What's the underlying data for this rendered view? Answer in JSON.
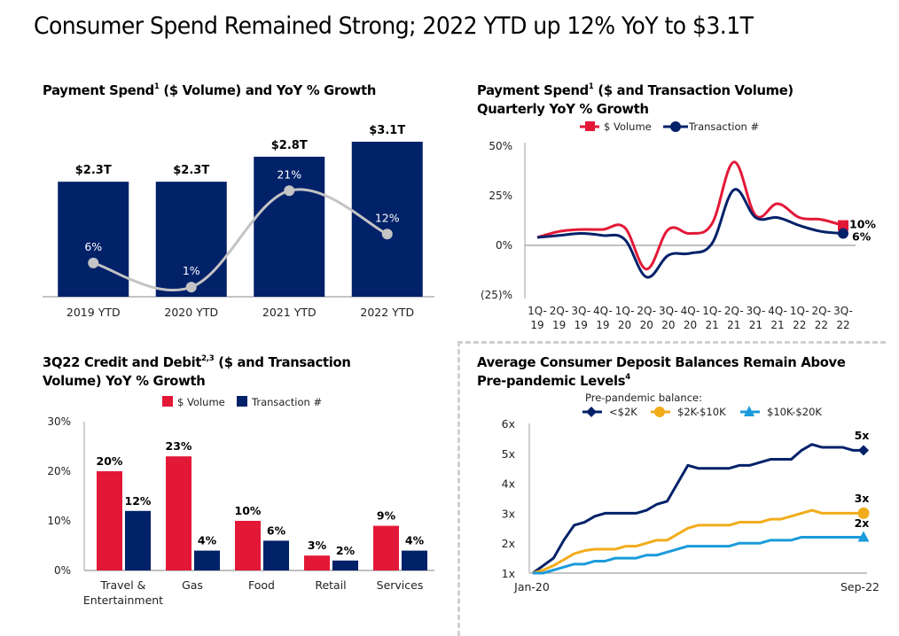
{
  "page": {
    "title": "Consumer Spend Remained Strong; 2022 YTD up 12% YoY to $3.1T"
  },
  "colors": {
    "navy": "#012169",
    "red": "#E31837",
    "gray_line": "#c4c4c4",
    "gold": "#F2AC1B",
    "light_blue": "#1A9BDB",
    "axis": "#a0a0a0"
  },
  "chart_data": [
    {
      "id": "payment-spend-annual",
      "type": "bar",
      "title": "Payment Spend",
      "title_sup": "1",
      "title_rest": " ($ Volume) and YoY % Growth",
      "categories": [
        "2019 YTD",
        "2020 YTD",
        "2021 YTD",
        "2022 YTD"
      ],
      "series": [
        {
          "name": "$ Volume (T)",
          "values": [
            2.3,
            2.3,
            2.8,
            3.1
          ],
          "labels": [
            "$2.3T",
            "$2.3T",
            "$2.8T",
            "$3.1T"
          ],
          "chart": "bar"
        },
        {
          "name": "YoY % Growth",
          "values": [
            6,
            1,
            21,
            12
          ],
          "labels": [
            "6%",
            "1%",
            "21%",
            "12%"
          ],
          "chart": "line"
        }
      ],
      "ylim": [
        0,
        3.1
      ],
      "growth_ylim": [
        -1,
        33
      ],
      "grid": false,
      "legend": "none"
    },
    {
      "id": "payment-spend-quarterly",
      "type": "line",
      "title": "Payment Spend",
      "title_sup": "1",
      "title_rest": " ($ and Transaction Volume)",
      "title_line2": "Quarterly YoY % Growth",
      "x": [
        "1Q-19",
        "2Q-19",
        "3Q-19",
        "4Q-19",
        "1Q-20",
        "2Q-20",
        "3Q-20",
        "4Q-20",
        "1Q-21",
        "2Q-21",
        "3Q-21",
        "4Q-21",
        "1Q-22",
        "2Q-22",
        "3Q-22"
      ],
      "series": [
        {
          "name": "$ Volume",
          "values": [
            4,
            7,
            8,
            8,
            9,
            -12,
            8,
            6,
            11,
            42,
            15,
            21,
            14,
            13,
            10
          ],
          "end_label": "10%"
        },
        {
          "name": "Transaction #",
          "values": [
            4,
            5,
            6,
            5,
            3,
            -16,
            -5,
            -4,
            1,
            28,
            14,
            14,
            10,
            7,
            6
          ],
          "end_label": "6%"
        }
      ],
      "yticks": [
        "50%",
        "25%",
        "0%",
        "(25)%"
      ],
      "ytick_values": [
        50,
        25,
        0,
        -25
      ],
      "ylim": [
        -25,
        50
      ],
      "grid": false,
      "legend": "top"
    },
    {
      "id": "credit-debit-category",
      "type": "bar",
      "title": "3Q22 Credit and Debit",
      "title_sup": "2,3",
      "title_rest": " ($ and Transaction",
      "title_line2": "Volume) YoY % Growth",
      "categories": [
        "Travel &\nEntertainment",
        "Gas",
        "Food",
        "Retail",
        "Services"
      ],
      "category_lines": [
        [
          "Travel &",
          "Entertainment"
        ],
        [
          "Gas"
        ],
        [
          "Food"
        ],
        [
          "Retail"
        ],
        [
          "Services"
        ]
      ],
      "series": [
        {
          "name": "$ Volume",
          "values": [
            20,
            23,
            10,
            3,
            9
          ],
          "labels": [
            "20%",
            "23%",
            "10%",
            "3%",
            "9%"
          ]
        },
        {
          "name": "Transaction #",
          "values": [
            12,
            4,
            6,
            2,
            4
          ],
          "labels": [
            "12%",
            "4%",
            "6%",
            "2%",
            "4%"
          ]
        }
      ],
      "yticks": [
        "30%",
        "20%",
        "10%",
        "0%"
      ],
      "ytick_values": [
        30,
        20,
        10,
        0
      ],
      "ylim": [
        0,
        30
      ],
      "grid": false,
      "legend": "top"
    },
    {
      "id": "deposit-balances",
      "type": "line",
      "title": "Average Consumer Deposit Balances Remain Above",
      "title_line2": "Pre-pandemic Levels",
      "title_sup": "4",
      "legend_title": "Pre-pandemic balance:",
      "x_start": "Jan-20",
      "x_end": "Sep-22",
      "series": [
        {
          "name": "<$2K",
          "marker": "diamond",
          "end_label": "5x",
          "values": [
            1.0,
            1.25,
            1.5,
            2.1,
            2.6,
            2.7,
            2.9,
            3.0,
            3.0,
            3.0,
            3.0,
            3.1,
            3.3,
            3.4,
            4.0,
            4.6,
            4.5,
            4.5,
            4.5,
            4.5,
            4.6,
            4.6,
            4.7,
            4.8,
            4.8,
            4.8,
            5.1,
            5.3,
            5.2,
            5.2,
            5.2,
            5.1,
            5.1
          ]
        },
        {
          "name": "$2K-$10K",
          "marker": "circle",
          "end_label": "3x",
          "values": [
            1.0,
            1.1,
            1.25,
            1.45,
            1.65,
            1.75,
            1.8,
            1.8,
            1.8,
            1.9,
            1.9,
            2.0,
            2.1,
            2.1,
            2.3,
            2.5,
            2.6,
            2.6,
            2.6,
            2.6,
            2.7,
            2.7,
            2.7,
            2.8,
            2.8,
            2.9,
            3.0,
            3.1,
            3.0,
            3.0,
            3.0,
            3.0,
            3.0
          ]
        },
        {
          "name": "$10K-$20K",
          "marker": "triangle",
          "end_label": "2x",
          "values": [
            1.0,
            1.0,
            1.1,
            1.2,
            1.3,
            1.3,
            1.4,
            1.4,
            1.5,
            1.5,
            1.5,
            1.6,
            1.6,
            1.7,
            1.8,
            1.9,
            1.9,
            1.9,
            1.9,
            1.9,
            2.0,
            2.0,
            2.0,
            2.1,
            2.1,
            2.1,
            2.2,
            2.2,
            2.2,
            2.2,
            2.2,
            2.2,
            2.2
          ]
        }
      ],
      "yticks": [
        "6x",
        "5x",
        "4x",
        "3x",
        "2x",
        "1x"
      ],
      "ytick_values": [
        6,
        5,
        4,
        3,
        2,
        1
      ],
      "ylim": [
        1,
        6
      ],
      "grid": false,
      "legend": "top"
    }
  ]
}
